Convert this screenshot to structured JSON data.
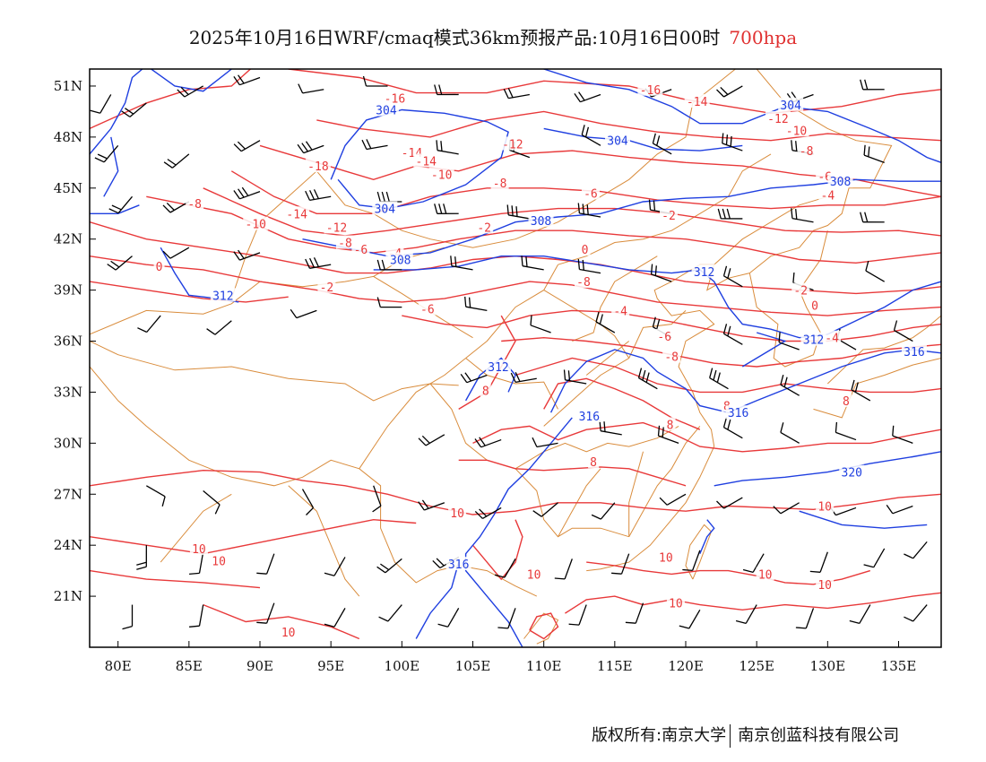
{
  "title": {
    "main": "2025年10月16日WRF/cmaq模式36km预报产品:10月16日00时",
    "level": "700hpa"
  },
  "colors": {
    "frame": "#000000",
    "temperature": "#e8393a",
    "geopotential": "#1f3fe0",
    "boundary": "#d98c3c",
    "wind": "#000000"
  },
  "axes": {
    "lon_range": [
      78,
      138
    ],
    "lat_range": [
      18,
      52
    ],
    "x_ticks": [
      {
        "lon": 80,
        "label": "80E"
      },
      {
        "lon": 85,
        "label": "85E"
      },
      {
        "lon": 90,
        "label": "90E"
      },
      {
        "lon": 95,
        "label": "95E"
      },
      {
        "lon": 100,
        "label": "100E"
      },
      {
        "lon": 105,
        "label": "105E"
      },
      {
        "lon": 110,
        "label": "110E"
      },
      {
        "lon": 115,
        "label": "115E"
      },
      {
        "lon": 120,
        "label": "120E"
      },
      {
        "lon": 125,
        "label": "125E"
      },
      {
        "lon": 130,
        "label": "130E"
      },
      {
        "lon": 135,
        "label": "135E"
      }
    ],
    "y_ticks": [
      {
        "lat": 51,
        "label": "51N"
      },
      {
        "lat": 48,
        "label": "48N"
      },
      {
        "lat": 45,
        "label": "45N"
      },
      {
        "lat": 42,
        "label": "42N"
      },
      {
        "lat": 39,
        "label": "39N"
      },
      {
        "lat": 36,
        "label": "36N"
      },
      {
        "lat": 33,
        "label": "33N"
      },
      {
        "lat": 30,
        "label": "30N"
      },
      {
        "lat": 27,
        "label": "27N"
      },
      {
        "lat": 24,
        "label": "24N"
      },
      {
        "lat": 21,
        "label": "21N"
      }
    ]
  },
  "temperature_labels": [
    {
      "text": "-16",
      "lon": 99.5,
      "lat": 50.3
    },
    {
      "text": "-16",
      "lon": 117.5,
      "lat": 50.8
    },
    {
      "text": "-14",
      "lon": 120.8,
      "lat": 50.1
    },
    {
      "text": "-12",
      "lon": 126.5,
      "lat": 49.1
    },
    {
      "text": "-10",
      "lon": 127.8,
      "lat": 48.4
    },
    {
      "text": "-8",
      "lon": 128.5,
      "lat": 47.2
    },
    {
      "text": "-6",
      "lon": 129.8,
      "lat": 45.7
    },
    {
      "text": "-4",
      "lon": 130.0,
      "lat": 44.6
    },
    {
      "text": "-14",
      "lon": 100.7,
      "lat": 47.1
    },
    {
      "text": "-14",
      "lon": 101.7,
      "lat": 46.6
    },
    {
      "text": "-12",
      "lon": 107.8,
      "lat": 47.6
    },
    {
      "text": "-10",
      "lon": 102.8,
      "lat": 45.8
    },
    {
      "text": "-8",
      "lon": 106.9,
      "lat": 45.3
    },
    {
      "text": "-6",
      "lon": 113.3,
      "lat": 44.7
    },
    {
      "text": "-18",
      "lon": 94.1,
      "lat": 46.3
    },
    {
      "text": "-14",
      "lon": 92.6,
      "lat": 43.5
    },
    {
      "text": "-10",
      "lon": 89.7,
      "lat": 42.9
    },
    {
      "text": "-12",
      "lon": 95.4,
      "lat": 42.7
    },
    {
      "text": "-8",
      "lon": 96.0,
      "lat": 41.8
    },
    {
      "text": "-6",
      "lon": 97.1,
      "lat": 41.4
    },
    {
      "text": "-4",
      "lon": 99.5,
      "lat": 41.2
    },
    {
      "text": "-2",
      "lon": 105.8,
      "lat": 42.7
    },
    {
      "text": "-2",
      "lon": 118.8,
      "lat": 43.4
    },
    {
      "text": "-2",
      "lon": 94.7,
      "lat": 39.2
    },
    {
      "text": "-2",
      "lon": 128.1,
      "lat": 39.0
    },
    {
      "text": "-8",
      "lon": 85.4,
      "lat": 44.1
    },
    {
      "text": "0",
      "lon": 82.9,
      "lat": 40.4
    },
    {
      "text": "0",
      "lon": 112.9,
      "lat": 41.4
    },
    {
      "text": "0",
      "lon": 129.1,
      "lat": 38.1
    },
    {
      "text": "-8",
      "lon": 112.8,
      "lat": 39.5
    },
    {
      "text": "-6",
      "lon": 101.8,
      "lat": 37.9
    },
    {
      "text": "-4",
      "lon": 115.4,
      "lat": 37.8
    },
    {
      "text": "-6",
      "lon": 118.5,
      "lat": 36.3
    },
    {
      "text": "-4",
      "lon": 130.3,
      "lat": 36.2
    },
    {
      "text": "-8",
      "lon": 119.0,
      "lat": 35.1
    },
    {
      "text": "8",
      "lon": 105.9,
      "lat": 33.1
    },
    {
      "text": "8",
      "lon": 122.9,
      "lat": 32.2
    },
    {
      "text": "8",
      "lon": 131.3,
      "lat": 32.5
    },
    {
      "text": "8",
      "lon": 118.9,
      "lat": 31.1
    },
    {
      "text": "8",
      "lon": 113.5,
      "lat": 28.9
    },
    {
      "text": "10",
      "lon": 103.9,
      "lat": 25.9
    },
    {
      "text": "10",
      "lon": 129.8,
      "lat": 26.3
    },
    {
      "text": "10",
      "lon": 85.7,
      "lat": 23.8
    },
    {
      "text": "10",
      "lon": 87.1,
      "lat": 23.1
    },
    {
      "text": "10",
      "lon": 109.3,
      "lat": 22.3
    },
    {
      "text": "10",
      "lon": 118.6,
      "lat": 23.3
    },
    {
      "text": "10",
      "lon": 125.6,
      "lat": 22.3
    },
    {
      "text": "10",
      "lon": 129.8,
      "lat": 21.7
    },
    {
      "text": "10",
      "lon": 119.3,
      "lat": 20.6
    },
    {
      "text": "10",
      "lon": 92.0,
      "lat": 18.9
    }
  ],
  "geopotential_labels": [
    {
      "text": "304",
      "lon": 98.9,
      "lat": 49.6
    },
    {
      "text": "304",
      "lon": 115.2,
      "lat": 47.8
    },
    {
      "text": "304",
      "lon": 127.4,
      "lat": 49.9
    },
    {
      "text": "304",
      "lon": 98.8,
      "lat": 43.8
    },
    {
      "text": "308",
      "lon": 109.8,
      "lat": 43.1
    },
    {
      "text": "308",
      "lon": 130.9,
      "lat": 45.4
    },
    {
      "text": "308",
      "lon": 99.9,
      "lat": 40.8
    },
    {
      "text": "312",
      "lon": 87.4,
      "lat": 38.7
    },
    {
      "text": "312",
      "lon": 121.3,
      "lat": 40.1
    },
    {
      "text": "312",
      "lon": 129.0,
      "lat": 36.1
    },
    {
      "text": "312",
      "lon": 106.8,
      "lat": 34.5
    },
    {
      "text": "316",
      "lon": 113.2,
      "lat": 31.6
    },
    {
      "text": "316",
      "lon": 123.7,
      "lat": 31.8
    },
    {
      "text": "316",
      "lon": 136.1,
      "lat": 35.4
    },
    {
      "text": "316",
      "lon": 104.0,
      "lat": 22.9
    },
    {
      "text": "320",
      "lon": 131.7,
      "lat": 28.3
    }
  ],
  "footer": {
    "copyright": "版权所有:南京大学",
    "company": "南京创蓝科技有限公司"
  }
}
